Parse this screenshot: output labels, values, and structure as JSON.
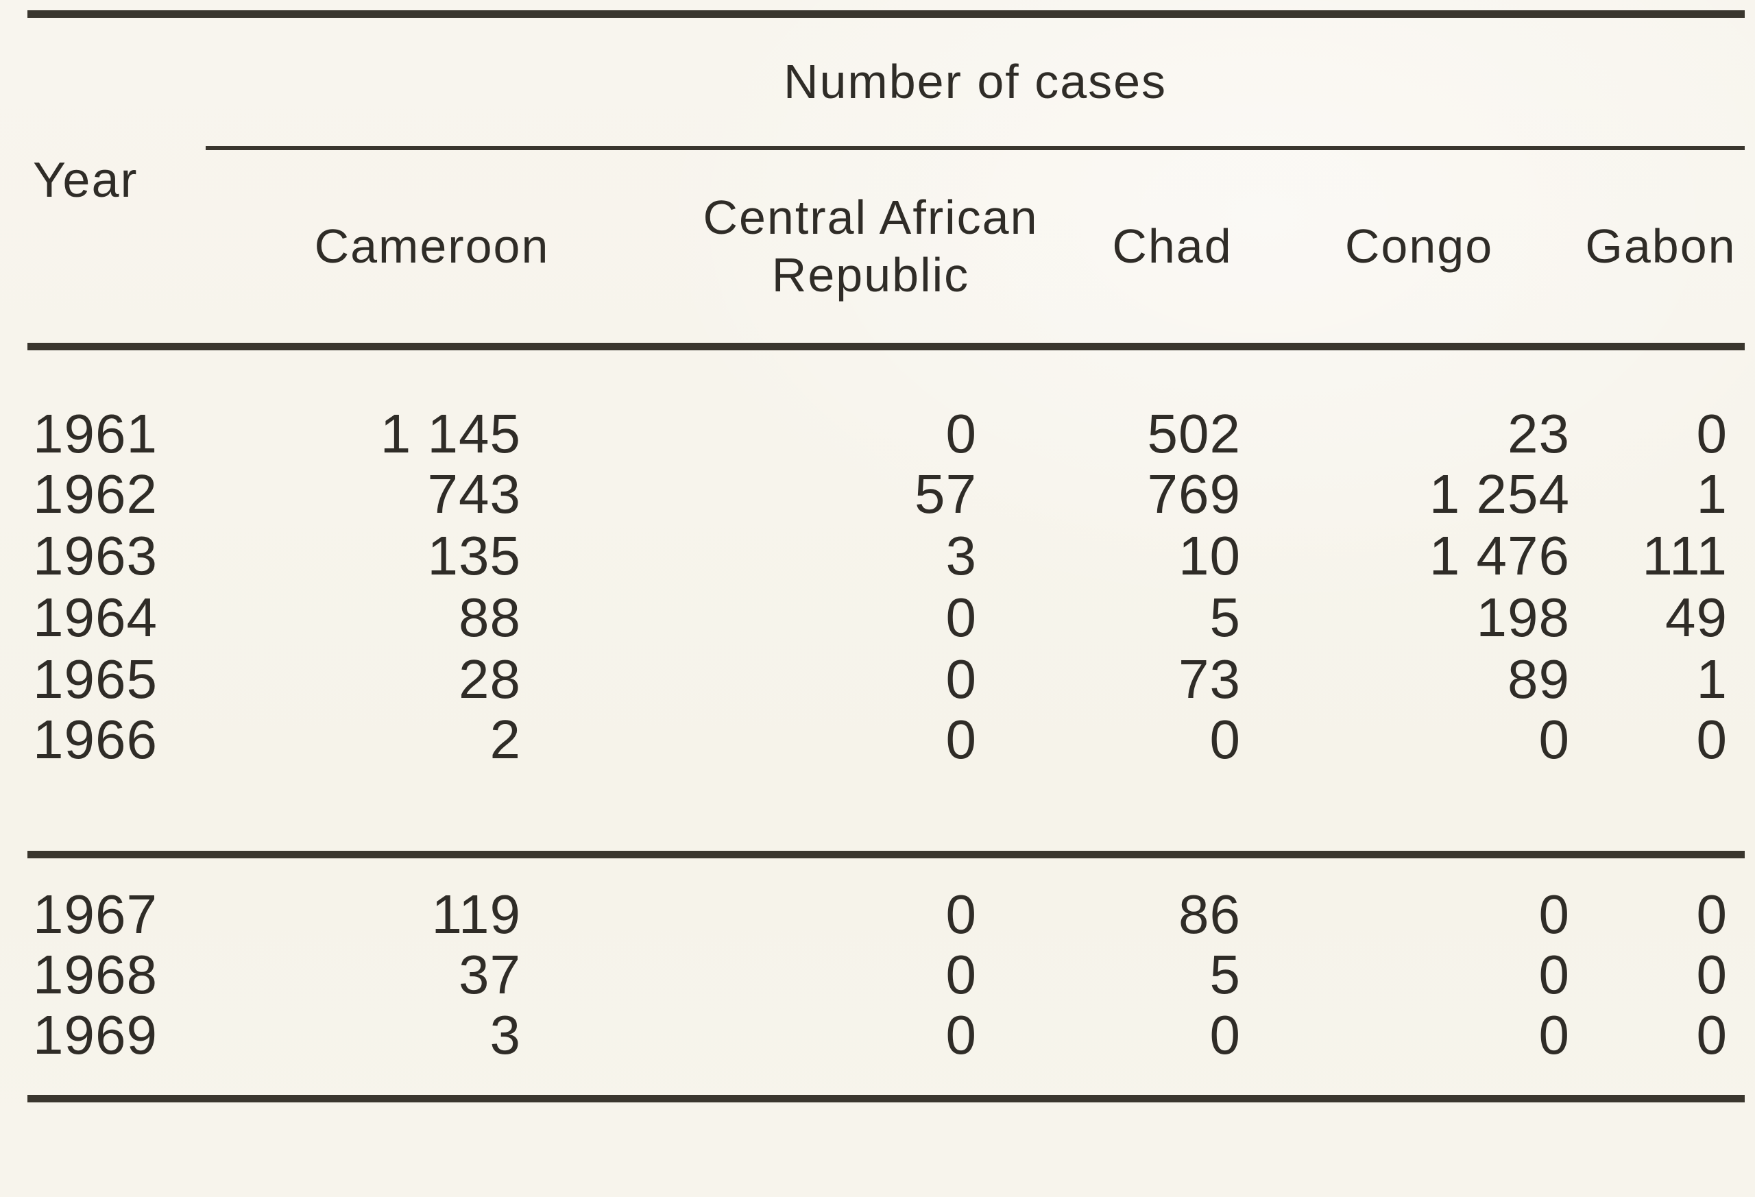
{
  "table": {
    "title": "Number of cases",
    "row_header": "Year",
    "columns": [
      "Cameroon",
      "Central African Republic",
      "Chad",
      "Congo",
      "Gabon"
    ],
    "groups": [
      {
        "rows": [
          {
            "year": "1961",
            "values": [
              "1 145",
              "0",
              "502",
              "23",
              "0"
            ]
          },
          {
            "year": "1962",
            "values": [
              "743",
              "57",
              "769",
              "1 254",
              "1"
            ]
          },
          {
            "year": "1963",
            "values": [
              "135",
              "3",
              "10",
              "1 476",
              "111"
            ]
          },
          {
            "year": "1964",
            "values": [
              "88",
              "0",
              "5",
              "198",
              "49"
            ]
          },
          {
            "year": "1965",
            "values": [
              "28",
              "0",
              "73",
              "89",
              "1"
            ]
          },
          {
            "year": "1966",
            "values": [
              "2",
              "0",
              "0",
              "0",
              "0"
            ]
          }
        ]
      },
      {
        "rows": [
          {
            "year": "1967",
            "values": [
              "119",
              "0",
              "86",
              "0",
              "0"
            ]
          },
          {
            "year": "1968",
            "values": [
              "37",
              "0",
              "5",
              "0",
              "0"
            ]
          },
          {
            "year": "1969",
            "values": [
              "3",
              "0",
              "0",
              "0",
              "0"
            ]
          }
        ]
      }
    ]
  }
}
